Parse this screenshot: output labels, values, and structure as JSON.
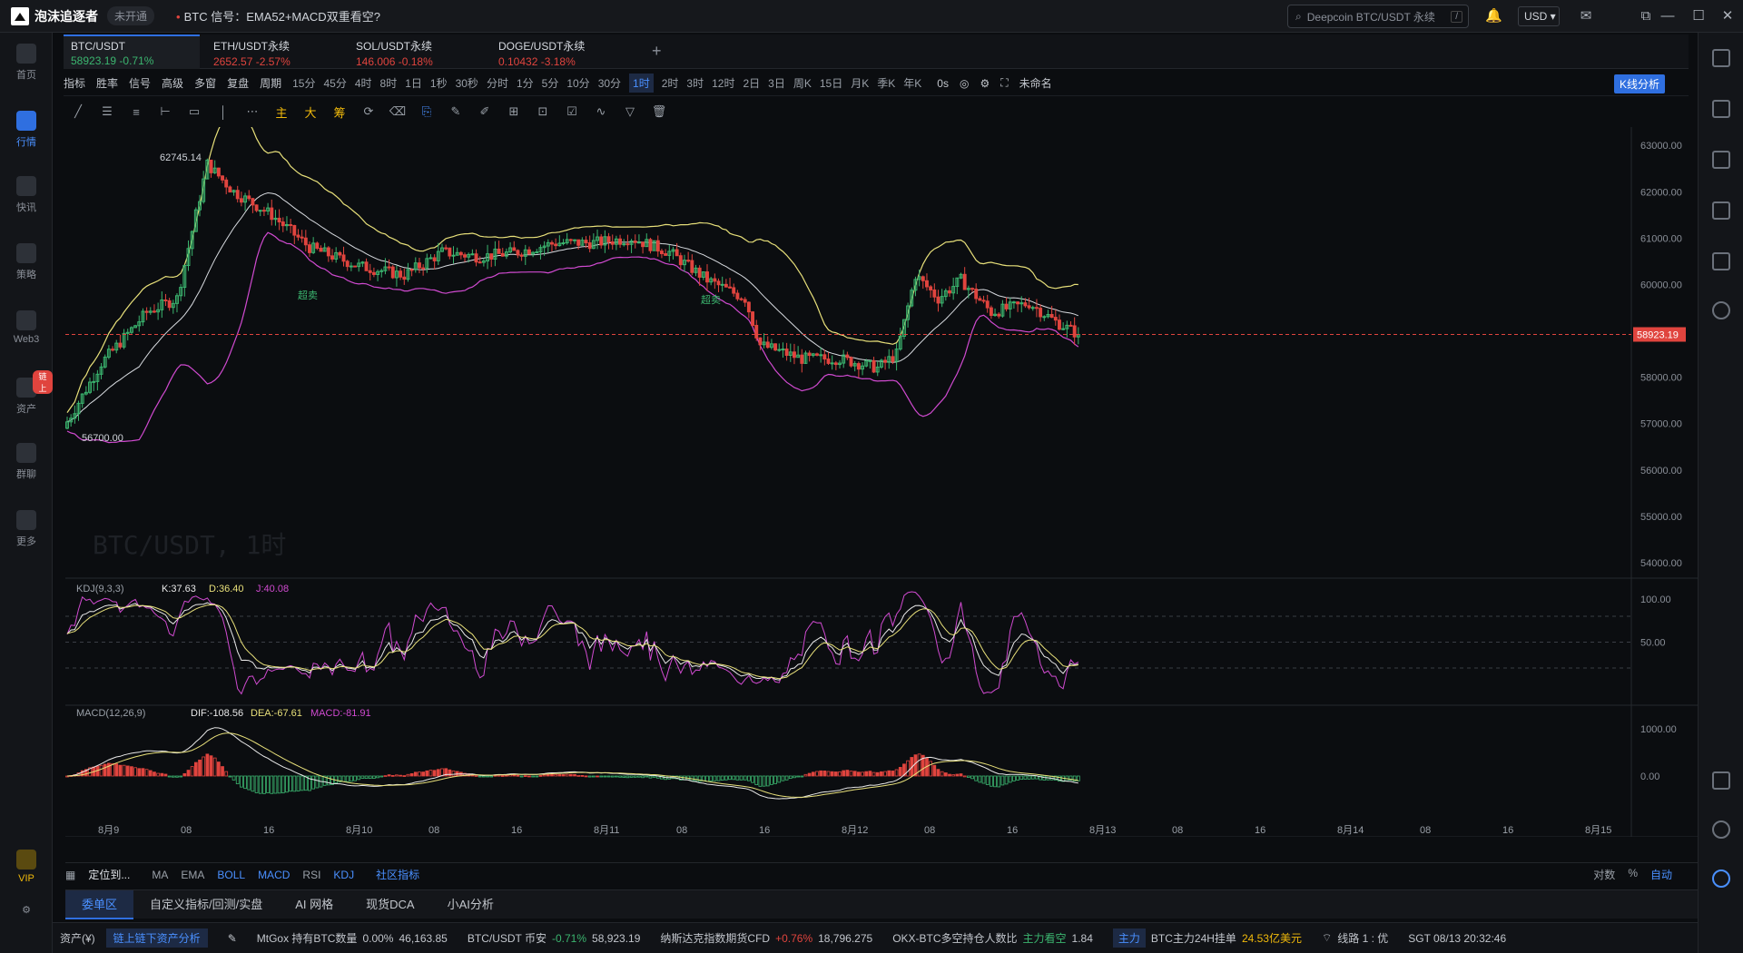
{
  "app": {
    "name": "泡沫追逐者",
    "status_pill": "未开通",
    "signal_label": "BTC 信号：EMA52+MACD双重看空?"
  },
  "search": {
    "placeholder": "Deepcoin BTC/USDT 永续",
    "key": "/"
  },
  "currency": "USD",
  "sidebar": [
    {
      "label": "首页",
      "icon": "home-icon"
    },
    {
      "label": "行情",
      "icon": "chart-icon",
      "active": true
    },
    {
      "label": "快讯",
      "icon": "news-icon"
    },
    {
      "label": "策略",
      "icon": "robot-icon"
    },
    {
      "label": "Web3",
      "icon": "web3-icon"
    },
    {
      "label": "资产",
      "icon": "wallet-icon",
      "badge": "链上"
    },
    {
      "label": "群聊",
      "icon": "chat-icon"
    },
    {
      "label": "更多",
      "icon": "grid-icon"
    },
    {
      "label": "VIP",
      "icon": "vip-icon"
    }
  ],
  "tabs": [
    {
      "name": "BTC/USDT",
      "price": "58923.19",
      "change": "-0.71%"
    },
    {
      "name": "ETH/USDT永续",
      "price": "2652.57",
      "change": "-2.57%"
    },
    {
      "name": "SOL/USDT永续",
      "price": "146.006",
      "change": "-0.18%"
    },
    {
      "name": "DOGE/USDT永续",
      "price": "0.10432",
      "change": "-3.18%"
    }
  ],
  "toolbar": {
    "items": [
      "指标",
      "胜率",
      "信号",
      "高级",
      "多窗",
      "复盘",
      "周期"
    ],
    "periods": [
      "15分",
      "45分",
      "4时",
      "8时",
      "1日",
      "1秒",
      "30秒",
      "分时",
      "1分",
      "5分",
      "10分",
      "30分",
      "1时",
      "2时",
      "3时",
      "12时",
      "2日",
      "3日",
      "周K",
      "15日",
      "月K",
      "季K",
      "年K"
    ],
    "active_period": "1时",
    "latency": "0s",
    "layout_name": "未命名",
    "kline_button": "K线分析"
  },
  "drawtools": {
    "main": "主",
    "big": "大",
    "chip": "筹"
  },
  "chart_data": {
    "type": "candlestick",
    "symbol_watermark": "BTC/USDT, 1时",
    "y_ticks": [
      "63000.00",
      "62000.00",
      "61000.00",
      "60000.00",
      "59000.00",
      "58000.00",
      "57000.00",
      "56000.00",
      "55000.00",
      "54000.00"
    ],
    "ylim": [
      54000,
      63200
    ],
    "last_price": "58923.19",
    "high_label": "62745.14",
    "low_label": "56700.00",
    "annotations": [
      "超卖",
      "超卖"
    ],
    "x_ticks": [
      "8月9",
      "08",
      "16",
      "8月10",
      "08",
      "16",
      "8月11",
      "08",
      "16",
      "8月12",
      "08",
      "16",
      "8月13",
      "08",
      "16",
      "8月14",
      "08",
      "16",
      "8月15"
    ],
    "kdj": {
      "label": "KDJ(9,3,3)",
      "k": "K:37.63",
      "d": "D:36.40",
      "j": "J:40.08",
      "ticks": [
        "100.00",
        "50.00"
      ]
    },
    "macd": {
      "label": "MACD(12,26,9)",
      "dif": "DIF:-108.56",
      "dea": "DEA:-67.61",
      "macd": "MACD:-81.91",
      "ticks": [
        "1000.00",
        "0.00"
      ]
    }
  },
  "bottom": {
    "locate": "定位到...",
    "indicators": [
      "MA",
      "EMA",
      "BOLL",
      "MACD",
      "RSI",
      "KDJ"
    ],
    "community": "社区指标",
    "right": [
      "对数",
      "%",
      "自动"
    ]
  },
  "panel_tabs": [
    "委单区",
    "自定义指标/回测/实盘",
    "AI 网格",
    "现货DCA",
    "小AI分析"
  ],
  "ticker": {
    "assets": "资产(¥)",
    "onchain": "链上链下资产分析",
    "items": [
      {
        "name": "MtGox 持有BTC数量",
        "change": "0.00%",
        "value": "46,163.85"
      },
      {
        "name": "BTC/USDT 币安",
        "change": "-0.71%",
        "value": "58,923.19"
      },
      {
        "name": "纳斯达克指数期货CFD",
        "change": "+0.76%",
        "value": "18,796.275"
      },
      {
        "name": "OKX-BTC多空持仓人数比",
        "change": "主力看空",
        "value": "1.84"
      }
    ],
    "main_tag": "主力",
    "main_text": "BTC主力24H挂单",
    "main_value": "24.53亿美元",
    "line": "线路 1 : 优",
    "clock": "SGT 08/13 20:32:46"
  }
}
